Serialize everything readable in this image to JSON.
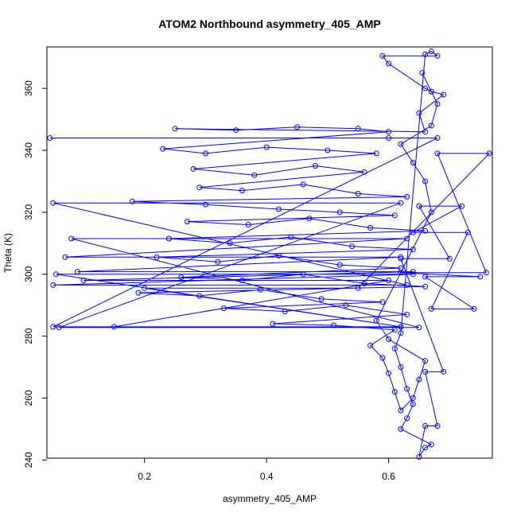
{
  "chart_data": {
    "type": "scatter",
    "title": "ATOM2 Northbound asymmetry_405_AMP",
    "xlabel": "asymmetry_405_AMP",
    "ylabel": "Theta (K)",
    "xlim": [
      0.04,
      0.77
    ],
    "ylim": [
      240.6,
      373.4
    ],
    "xticks": [
      0.2,
      0.4,
      0.6
    ],
    "yticks": [
      240,
      260,
      280,
      300,
      320,
      340,
      360
    ],
    "series_color": "#0000ff",
    "marker": "open-circle",
    "connected": true,
    "series": [
      {
        "points": [
          [
            0.045,
            344
          ],
          [
            0.6,
            344
          ],
          [
            0.68,
            344
          ],
          [
            0.05,
            283
          ],
          [
            0.62,
            283
          ],
          [
            0.055,
            300
          ],
          [
            0.64,
            300
          ],
          [
            0.05,
            296.5
          ],
          [
            0.63,
            296.5
          ],
          [
            0.05,
            323
          ],
          [
            0.62,
            323
          ],
          [
            0.06,
            282.8
          ],
          [
            0.65,
            282.8
          ],
          [
            0.08,
            311.5
          ],
          [
            0.63,
            311.5
          ],
          [
            0.07,
            305.5
          ],
          [
            0.62,
            305.5
          ],
          [
            0.09,
            300.8
          ],
          [
            0.64,
            300.8
          ],
          [
            0.1,
            298
          ],
          [
            0.6,
            298
          ],
          [
            0.15,
            283
          ],
          [
            0.62,
            283
          ],
          [
            0.2,
            295.5
          ],
          [
            0.55,
            295.5
          ],
          [
            0.765,
            339
          ],
          [
            0.68,
            339
          ],
          [
            0.76,
            300.5
          ],
          [
            0.62,
            300.5
          ],
          [
            0.75,
            299.2
          ],
          [
            0.66,
            299.2
          ],
          [
            0.74,
            288.8
          ],
          [
            0.67,
            288.8
          ],
          [
            0.73,
            313.5
          ],
          [
            0.64,
            313.5
          ],
          [
            0.72,
            322
          ],
          [
            0.65,
            322
          ],
          [
            0.7,
            305
          ],
          [
            0.62,
            305
          ],
          [
            0.69,
            268.5
          ],
          [
            0.66,
            268.5
          ],
          [
            0.68,
            251
          ],
          [
            0.66,
            251
          ],
          [
            0.65,
            241
          ],
          [
            0.66,
            244
          ],
          [
            0.67,
            245
          ],
          [
            0.62,
            250
          ],
          [
            0.63,
            253.5
          ],
          [
            0.64,
            258
          ],
          [
            0.63,
            263
          ],
          [
            0.62,
            270
          ],
          [
            0.61,
            276
          ],
          [
            0.62,
            281
          ],
          [
            0.66,
            371
          ],
          [
            0.67,
            372
          ],
          [
            0.68,
            370.5
          ],
          [
            0.59,
            370.5
          ],
          [
            0.6,
            368
          ],
          [
            0.66,
            360
          ],
          [
            0.67,
            359
          ],
          [
            0.69,
            358
          ],
          [
            0.65,
            352
          ],
          [
            0.66,
            346
          ],
          [
            0.25,
            347
          ],
          [
            0.35,
            346.5
          ],
          [
            0.45,
            347.5
          ],
          [
            0.55,
            347
          ],
          [
            0.6,
            346
          ],
          [
            0.23,
            340.5
          ],
          [
            0.3,
            339
          ],
          [
            0.4,
            341
          ],
          [
            0.5,
            340
          ],
          [
            0.58,
            339
          ],
          [
            0.28,
            334
          ],
          [
            0.38,
            332
          ],
          [
            0.48,
            335
          ],
          [
            0.56,
            333
          ],
          [
            0.29,
            328
          ],
          [
            0.36,
            327
          ],
          [
            0.46,
            329
          ],
          [
            0.55,
            326
          ],
          [
            0.63,
            325
          ],
          [
            0.18,
            323.5
          ],
          [
            0.3,
            322.5
          ],
          [
            0.42,
            321
          ],
          [
            0.52,
            320
          ],
          [
            0.61,
            319
          ],
          [
            0.27,
            317
          ],
          [
            0.37,
            316
          ],
          [
            0.47,
            318
          ],
          [
            0.57,
            315
          ],
          [
            0.66,
            314
          ],
          [
            0.24,
            311.5
          ],
          [
            0.34,
            310
          ],
          [
            0.44,
            312
          ],
          [
            0.54,
            309
          ],
          [
            0.64,
            308
          ],
          [
            0.22,
            305.5
          ],
          [
            0.32,
            304
          ],
          [
            0.42,
            306
          ],
          [
            0.52,
            303
          ],
          [
            0.62,
            302
          ],
          [
            0.26,
            299
          ],
          [
            0.36,
            298
          ],
          [
            0.46,
            300
          ],
          [
            0.56,
            297
          ],
          [
            0.66,
            296
          ],
          [
            0.19,
            294
          ],
          [
            0.29,
            293
          ],
          [
            0.39,
            295
          ],
          [
            0.49,
            292
          ],
          [
            0.59,
            291
          ],
          [
            0.33,
            289
          ],
          [
            0.43,
            288
          ],
          [
            0.53,
            290
          ],
          [
            0.63,
            287
          ],
          [
            0.41,
            284
          ],
          [
            0.51,
            283.5
          ],
          [
            0.61,
            282
          ],
          [
            0.57,
            277
          ],
          [
            0.59,
            273
          ],
          [
            0.6,
            268
          ],
          [
            0.61,
            262
          ],
          [
            0.62,
            256
          ],
          [
            0.64,
            260
          ],
          [
            0.65,
            266
          ],
          [
            0.66,
            272
          ],
          [
            0.6,
            279
          ],
          [
            0.58,
            285
          ],
          [
            0.67,
            320
          ],
          [
            0.66,
            330
          ],
          [
            0.64,
            336
          ],
          [
            0.62,
            342
          ],
          [
            0.67,
            348
          ],
          [
            0.68,
            355
          ],
          [
            0.655,
            365
          ]
        ]
      }
    ]
  }
}
